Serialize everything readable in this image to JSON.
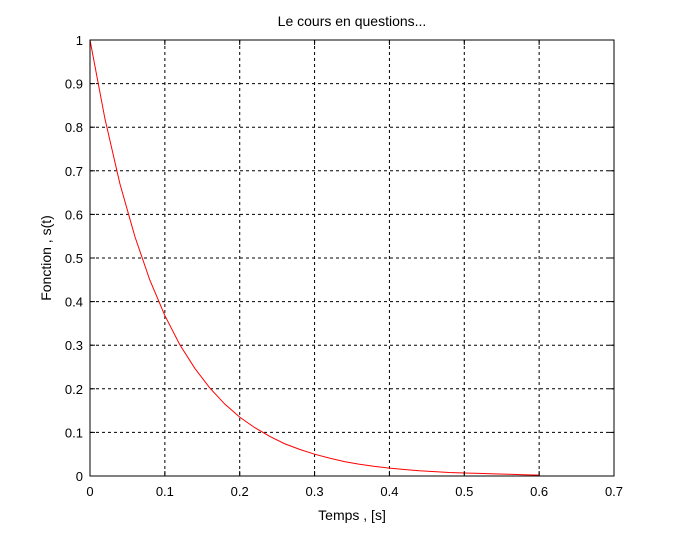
{
  "chart_data": {
    "type": "line",
    "title": "Le cours en questions...",
    "xlabel": "Temps , [s]",
    "ylabel": "Fonction , s(t)",
    "xlim": [
      0,
      0.7
    ],
    "ylim": [
      0,
      1
    ],
    "xticks": [
      0,
      0.1,
      0.2,
      0.3,
      0.4,
      0.5,
      0.6,
      0.7
    ],
    "yticks": [
      0,
      0.1,
      0.2,
      0.3,
      0.4,
      0.5,
      0.6,
      0.7,
      0.8,
      0.9,
      1
    ],
    "xtick_labels": [
      "0",
      "0.1",
      "0.2",
      "0.3",
      "0.4",
      "0.5",
      "0.6",
      "0.7"
    ],
    "ytick_labels": [
      "0",
      "0.1",
      "0.2",
      "0.3",
      "0.4",
      "0.5",
      "0.6",
      "0.7",
      "0.8",
      "0.9",
      "1"
    ],
    "grid": true,
    "series": [
      {
        "color": "#ff0000",
        "x": [
          0,
          0.02,
          0.04,
          0.06,
          0.08,
          0.1,
          0.12,
          0.14,
          0.16,
          0.18,
          0.2,
          0.22,
          0.24,
          0.26,
          0.28,
          0.3,
          0.32,
          0.34,
          0.36,
          0.38,
          0.4,
          0.42,
          0.44,
          0.46,
          0.48,
          0.5,
          0.52,
          0.54,
          0.56,
          0.58,
          0.6
        ],
        "y": [
          1.0,
          0.819,
          0.67,
          0.549,
          0.449,
          0.368,
          0.301,
          0.247,
          0.202,
          0.165,
          0.135,
          0.111,
          0.091,
          0.074,
          0.061,
          0.05,
          0.041,
          0.033,
          0.027,
          0.022,
          0.018,
          0.015,
          0.012,
          0.01,
          0.008,
          0.007,
          0.006,
          0.005,
          0.004,
          0.003,
          0.002
        ]
      }
    ]
  }
}
